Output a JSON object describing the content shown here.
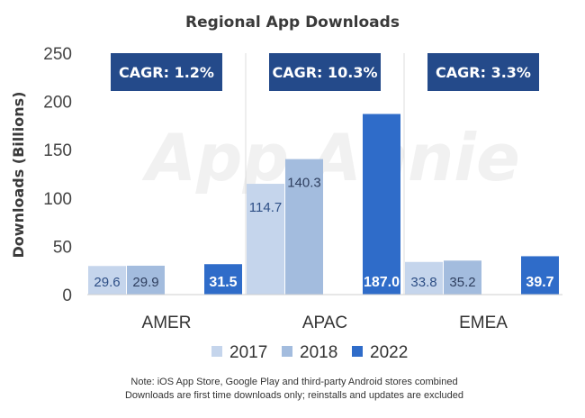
{
  "chart_data": {
    "type": "bar",
    "title": "Regional App Downloads",
    "ylabel": "Downloads (Billions)",
    "ylim": [
      0,
      250
    ],
    "yticks": [
      0,
      50,
      100,
      150,
      200,
      250
    ],
    "categories": [
      "AMER",
      "APAC",
      "EMEA"
    ],
    "series": [
      {
        "name": "2017",
        "color": "#c5d5ec",
        "label_color": "#2e4f86",
        "label_bold": false,
        "values": [
          29.6,
          114.7,
          33.8
        ],
        "labels": [
          "29.6",
          "114.7",
          "33.8"
        ]
      },
      {
        "name": "2018",
        "color": "#a3bcde",
        "label_color": "#2f3f5f",
        "label_bold": false,
        "values": [
          29.9,
          140.3,
          35.2
        ],
        "labels": [
          "29.9",
          "140.3",
          "35.2"
        ]
      },
      {
        "name": "2022",
        "color": "#2f6cc9",
        "label_color": "#ffffff",
        "label_bold": true,
        "values": [
          31.5,
          187.0,
          39.7
        ],
        "labels": [
          "31.5",
          "187.0",
          "39.7"
        ]
      }
    ],
    "annotations": [
      "CAGR: 1.2%",
      "CAGR: 10.3%",
      "CAGR: 3.3%"
    ],
    "annotation_color": "#244a8a",
    "legend_position": "bottom",
    "grid": false
  },
  "watermark": "App Annie",
  "notes": [
    "Note: iOS App Store, Google Play and third-party Android stores combined",
    "Downloads are first time downloads only; reinstalls and updates are excluded"
  ]
}
